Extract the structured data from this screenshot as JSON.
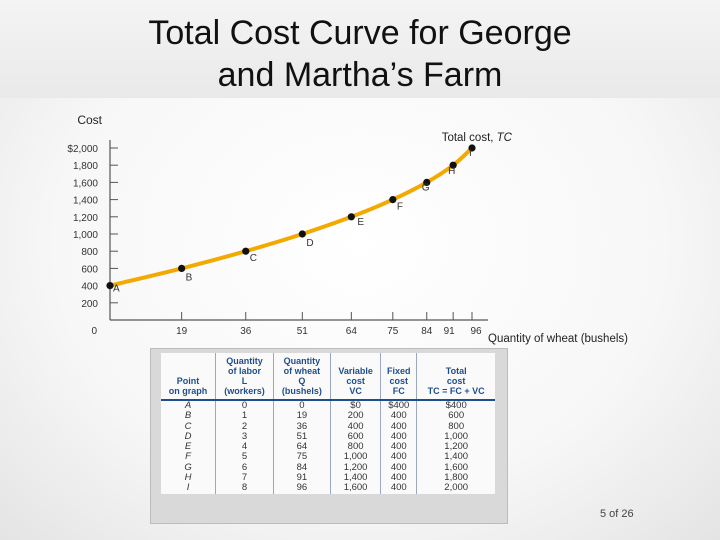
{
  "slide": {
    "title": "Total Cost Curve for George\nand Martha’s Farm",
    "page_number": "5 of 26"
  },
  "chart_data": {
    "type": "line",
    "title": "",
    "ylabel": "Cost",
    "xlabel": "Quantity of wheat (bushels)",
    "series_label": "Total cost, TC",
    "x": [
      0,
      19,
      36,
      51,
      64,
      75,
      84,
      91,
      96
    ],
    "point_labels": [
      "A",
      "B",
      "C",
      "D",
      "E",
      "F",
      "G",
      "H",
      "I"
    ],
    "series": [
      {
        "name": "Total cost, TC",
        "values": [
          400,
          600,
          800,
          1000,
          1200,
          1400,
          1600,
          1800,
          2000
        ]
      }
    ],
    "xticks": [
      "0",
      "19",
      "36",
      "51",
      "64",
      "75",
      "84",
      "91",
      "96"
    ],
    "yticks": [
      {
        "value": 200,
        "label": "200"
      },
      {
        "value": 400,
        "label": "400"
      },
      {
        "value": 600,
        "label": "600"
      },
      {
        "value": 800,
        "label": "800"
      },
      {
        "value": 1000,
        "label": "1,000"
      },
      {
        "value": 1200,
        "label": "1,200"
      },
      {
        "value": 1400,
        "label": "1,400"
      },
      {
        "value": 1600,
        "label": "1,600"
      },
      {
        "value": 1800,
        "label": "1,800"
      },
      {
        "value": 2000,
        "label": "$2,000"
      }
    ],
    "ylim": [
      0,
      2000
    ],
    "xlim": [
      0,
      96
    ],
    "grid": false,
    "colors": {
      "line": "#f2a900",
      "marker": "#111111"
    }
  },
  "table": {
    "headers": [
      "Point\non graph",
      "Quantity\nof labor\nL\n(workers)",
      "Quantity\nof wheat\nQ\n(bushels)",
      "Variable\ncost\nVC",
      "Fixed\ncost\nFC",
      "Total\ncost\nTC = FC + VC"
    ],
    "rows": [
      [
        "A",
        "0",
        "0",
        "$0",
        "$400",
        "$400"
      ],
      [
        "B",
        "1",
        "19",
        "200",
        "400",
        "600"
      ],
      [
        "C",
        "2",
        "36",
        "400",
        "400",
        "800"
      ],
      [
        "D",
        "3",
        "51",
        "600",
        "400",
        "1,000"
      ],
      [
        "E",
        "4",
        "64",
        "800",
        "400",
        "1,200"
      ],
      [
        "F",
        "5",
        "75",
        "1,000",
        "400",
        "1,400"
      ],
      [
        "G",
        "6",
        "84",
        "1,200",
        "400",
        "1,600"
      ],
      [
        "H",
        "7",
        "91",
        "1,400",
        "400",
        "1,800"
      ],
      [
        "I",
        "8",
        "96",
        "1,600",
        "400",
        "2,000"
      ]
    ]
  }
}
